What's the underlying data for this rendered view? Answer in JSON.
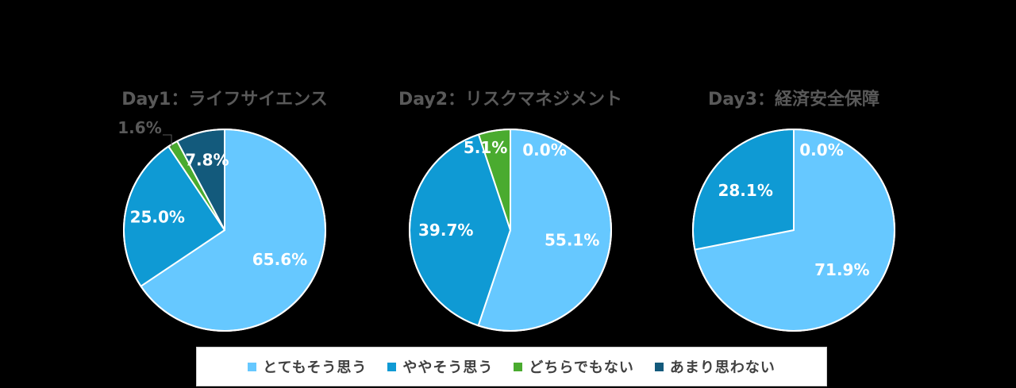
{
  "chart_data": [
    {
      "type": "pie",
      "title": "Day1：ライフサイエンス",
      "categories": [
        "とてもそう思う",
        "ややそう思う",
        "どちらでもない",
        "あまり思わない"
      ],
      "values": [
        65.6,
        25.0,
        1.6,
        7.8
      ],
      "labels": [
        "65.6%",
        "25.0%",
        "1.6%",
        "7.8%"
      ]
    },
    {
      "type": "pie",
      "title": "Day2：リスクマネジメント",
      "categories": [
        "とてもそう思う",
        "ややそう思う",
        "どちらでもない",
        "あまり思わない"
      ],
      "values": [
        55.1,
        39.7,
        5.1,
        0.0
      ],
      "labels": [
        "55.1%",
        "39.7%",
        "5.1%",
        "0.0%"
      ]
    },
    {
      "type": "pie",
      "title": "Day3：経済安全保障",
      "categories": [
        "とてもそう思う",
        "ややそう思う",
        "どちらでもない",
        "あまり思わない"
      ],
      "values": [
        71.9,
        28.1,
        0.0,
        0.0
      ],
      "labels": [
        "71.9%",
        "28.1%",
        "",
        "0.0%"
      ]
    }
  ],
  "legend": {
    "items": [
      {
        "label": "とてもそう思う",
        "color": "#66c8ff"
      },
      {
        "label": "ややそう思う",
        "color": "#0f9ad4"
      },
      {
        "label": "どちらでもない",
        "color": "#4aab2f"
      },
      {
        "label": "あまり思わない",
        "color": "#135a7c"
      }
    ]
  }
}
